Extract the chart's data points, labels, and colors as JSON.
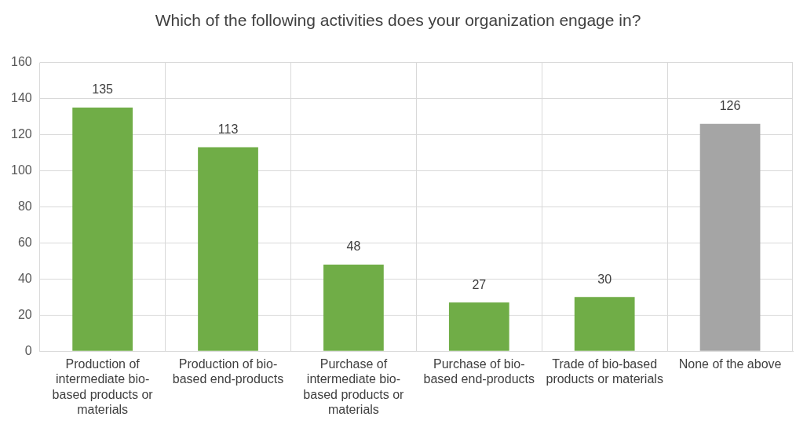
{
  "chart_data": {
    "type": "bar",
    "title": "Which of the following activities does your organization engage in?",
    "categories": [
      "Production of intermediate bio-based products or materials",
      "Production of bio-based end-products",
      "Purchase of intermediate bio-based products or materials",
      "Purchase of bio-based end-products",
      "Trade of bio-based products or materials",
      "None of the above"
    ],
    "values": [
      135,
      113,
      48,
      27,
      30,
      126
    ],
    "colors": [
      "#70ad47",
      "#70ad47",
      "#70ad47",
      "#70ad47",
      "#70ad47",
      "#a5a5a5"
    ],
    "ylim": [
      0,
      160
    ],
    "yticks": [
      0,
      20,
      40,
      60,
      80,
      100,
      120,
      140,
      160
    ],
    "grid": true,
    "data_labels": true
  }
}
